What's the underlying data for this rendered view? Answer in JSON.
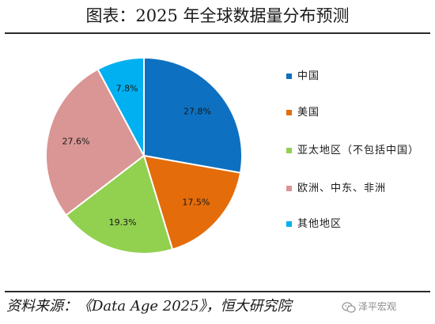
{
  "header": {
    "title": "图表：2025 年全球数据量分布预测"
  },
  "chart_data": {
    "type": "pie",
    "title": "图表：2025 年全球数据量分布预测",
    "categories": [
      "中国",
      "美国",
      "亚太地区（不包括中国）",
      "欧洲、中东、非洲",
      "其他地区"
    ],
    "values": [
      27.8,
      17.5,
      19.3,
      27.6,
      7.8
    ],
    "labels": [
      "27.8%",
      "17.5%",
      "19.3%",
      "27.6%",
      "7.8%"
    ],
    "colors": [
      "#0E70C0",
      "#E46C0A",
      "#92D050",
      "#D99694",
      "#00B0F0"
    ],
    "start": "12 o'clock",
    "direction": "clockwise",
    "legend": "right"
  },
  "legend": {
    "items": [
      {
        "label": "中国",
        "color": "#0E70C0"
      },
      {
        "label": "美国",
        "color": "#E46C0A"
      },
      {
        "label": "亚太地区（不包括中国）",
        "color": "#92D050"
      },
      {
        "label": "欧洲、中东、非洲",
        "color": "#D99694"
      },
      {
        "label": "其他地区",
        "color": "#00B0F0"
      }
    ]
  },
  "footer": {
    "source": "资料来源：《Data Age 2025》，恒大研究院",
    "watermark": "泽平宏观",
    "watermark_icon": "wechat-icon"
  }
}
